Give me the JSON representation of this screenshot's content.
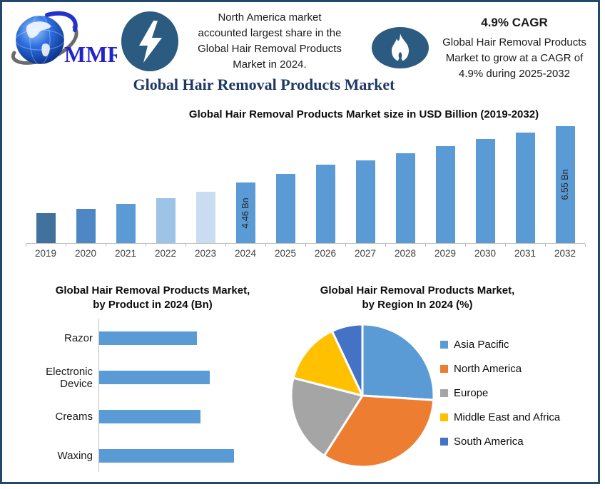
{
  "page": {
    "border_color": "#21486B",
    "background": "#FFFFFF",
    "navy_title_color": "#1F3864",
    "badge_color": "#2B5B80",
    "accent_color": "#5B9BD5"
  },
  "header": {
    "logo_text": "MMR",
    "logo_color": "#2323C8",
    "logo_icon": "globe-swoosh-logo",
    "left_badge_icon": "lightning-icon",
    "right_badge_icon": "flame-icon",
    "highlight_note": "North America market\naccounted largest share in the\nGlobal Hair Removal Products\nMarket in 2024.",
    "title": "Global Hair Removal Products Market",
    "cagr_title": "4.9% CAGR",
    "cagr_note": "Global Hair Removal Products\nMarket to grow at a CAGR of\n4.9% during 2025-2032"
  },
  "chart_data": [
    {
      "type": "bar",
      "title": "Global Hair Removal Products Market size in USD Billion (2019-2032)",
      "xlabel": "",
      "ylabel": "USD Billion",
      "grid": false,
      "legend_position": "none",
      "categories": [
        "2019",
        "2020",
        "2021",
        "2022",
        "2023",
        "2024",
        "2025",
        "2026",
        "2027",
        "2028",
        "2029",
        "2030",
        "2031",
        "2032"
      ],
      "values": [
        3.3,
        3.48,
        3.66,
        3.86,
        4.11,
        4.46,
        4.77,
        5.12,
        5.28,
        5.54,
        5.8,
        6.06,
        6.31,
        6.55
      ],
      "unit": "Bn",
      "bar_labels": {
        "2024": "4.46 Bn",
        "2032": "6.55 Bn"
      },
      "bar_colors": [
        "#41719C",
        "#4E88C4",
        "#5B9BD5",
        "#9DC3E6",
        "#C9DCF2",
        "#5B9BD5",
        "#5B9BD5",
        "#5B9BD5",
        "#5B9BD5",
        "#5B9BD5",
        "#5B9BD5",
        "#5B9BD5",
        "#5B9BD5",
        "#5B9BD5"
      ],
      "note": "only 2024 (4.46 Bn) and 2032 (6.55 Bn) are labeled; other values estimated from bar heights"
    },
    {
      "type": "bar",
      "orientation": "horizontal",
      "title": "Global Hair Removal Products Market,\nby Product in 2024 (Bn)",
      "grid": false,
      "legend_position": "none",
      "categories": [
        "Razor",
        "Electronic Device",
        "Creams",
        "Waxing"
      ],
      "values": [
        0.98,
        1.11,
        1.02,
        1.36
      ],
      "unit": "Bn",
      "bar_color": "#5B9BD5",
      "note": "bars unlabeled; values estimated proportionally to bar lengths"
    },
    {
      "type": "pie",
      "title": "Global Hair Removal Products Market,\nby Region In 2024 (%)",
      "legend_position": "right",
      "labels": [
        "Asia Pacific",
        "North America",
        "Europe",
        "Middle East and Africa",
        "South America"
      ],
      "values": [
        26,
        33,
        20,
        14,
        7
      ],
      "unit": "%",
      "colors": [
        "#5B9BD5",
        "#ED7D31",
        "#A5A5A5",
        "#FFC000",
        "#4472C4"
      ],
      "start_angle_deg": 0,
      "direction": "clockwise",
      "note": "slice percentages estimated from slice angles"
    }
  ]
}
